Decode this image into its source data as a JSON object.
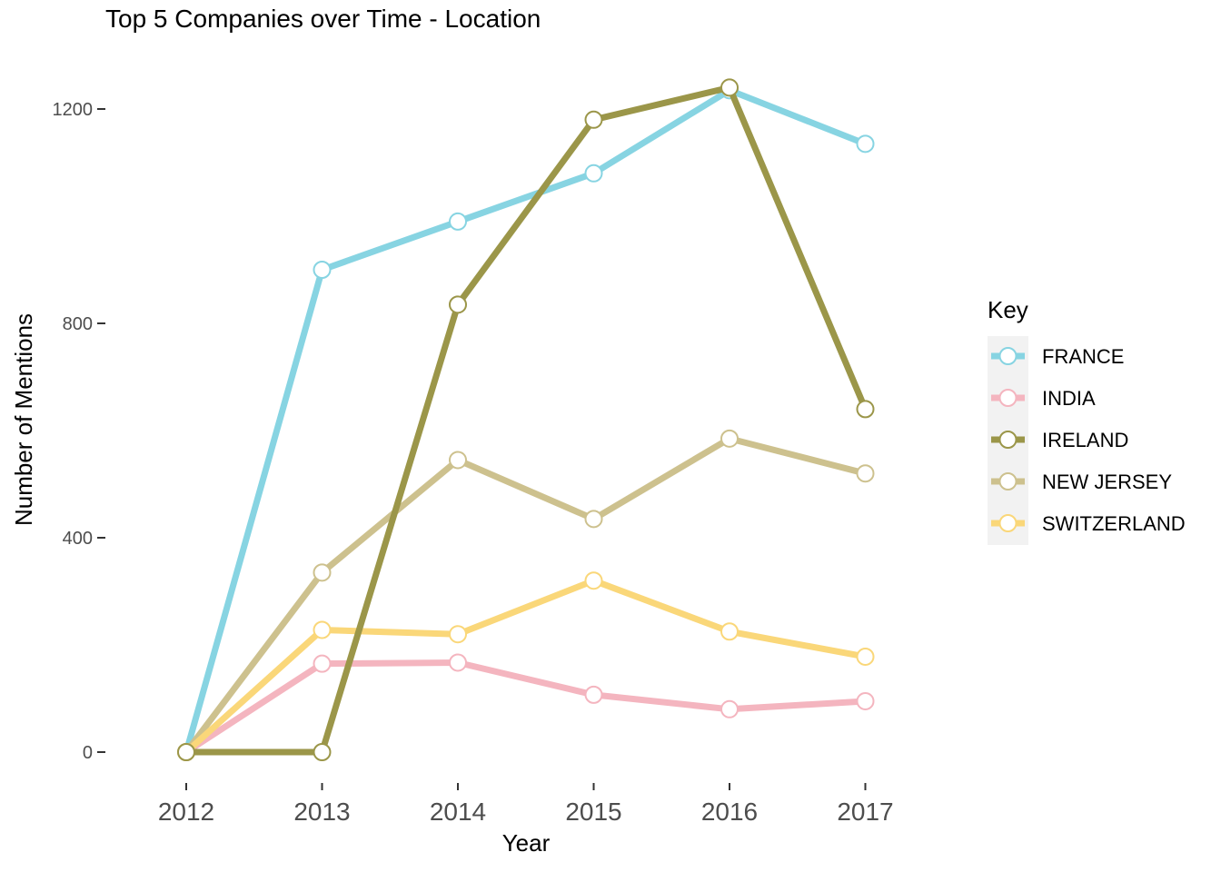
{
  "chart_data": {
    "type": "line",
    "title": "Top 5 Companies over Time - Location",
    "xlabel": "Year",
    "ylabel": "Number of Mentions",
    "x": [
      "2012",
      "2013",
      "2014",
      "2015",
      "2016",
      "2017"
    ],
    "yticks": [
      "0",
      "400",
      "800",
      "1200"
    ],
    "ylim": [
      -60,
      1300
    ],
    "grid": false,
    "legend": {
      "title": "Key",
      "position": "right"
    },
    "series": [
      {
        "name": "FRANCE",
        "color": "#87d4e2",
        "values": [
          0,
          900,
          990,
          1080,
          1235,
          1135
        ]
      },
      {
        "name": "INDIA",
        "color": "#f4b5bf",
        "values": [
          0,
          165,
          167,
          107,
          80,
          95
        ]
      },
      {
        "name": "IRELAND",
        "color": "#9b9649",
        "values": [
          0,
          0,
          835,
          1180,
          1240,
          640
        ]
      },
      {
        "name": "NEW JERSEY",
        "color": "#cdc18e",
        "values": [
          0,
          335,
          545,
          435,
          585,
          520
        ]
      },
      {
        "name": "SWITZERLAND",
        "color": "#fad779",
        "values": [
          0,
          228,
          220,
          320,
          225,
          178
        ]
      }
    ],
    "draw_order": [
      "FRANCE",
      "INDIA",
      "NEW JERSEY",
      "SWITZERLAND",
      "IRELAND"
    ]
  }
}
